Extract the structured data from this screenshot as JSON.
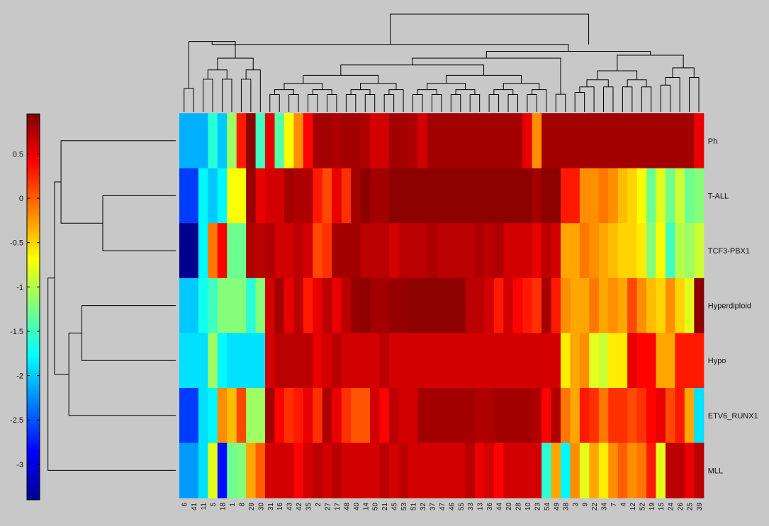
{
  "chart_data": {
    "type": "heatmap",
    "title": "",
    "rows": [
      "Ph",
      "T-ALL",
      "TCF3-PBX1",
      "Hyperdiploid",
      "Hypo",
      "ETV6_RUNX1",
      "MLL"
    ],
    "columns": [
      "6",
      "41",
      "11",
      "5",
      "18",
      "1",
      "8",
      "29",
      "30",
      "31",
      "16",
      "43",
      "42",
      "35",
      "2",
      "27",
      "17",
      "48",
      "40",
      "14",
      "50",
      "21",
      "45",
      "53",
      "51",
      "32",
      "37",
      "47",
      "46",
      "55",
      "33",
      "13",
      "36",
      "44",
      "20",
      "28",
      "10",
      "23",
      "54",
      "49",
      "38",
      "3",
      "9",
      "22",
      "34",
      "7",
      "4",
      "12",
      "52",
      "19",
      "15",
      "24",
      "26",
      "25",
      "39"
    ],
    "values": [
      [
        -2.1,
        -2.1,
        -2.1,
        -1.6,
        -2.0,
        -1.1,
        0.3,
        0.9,
        -1.5,
        0.5,
        -1.4,
        -0.7,
        -0.2,
        0.4,
        0.8,
        0.8,
        0.75,
        0.8,
        0.8,
        0.75,
        0.6,
        0.6,
        0.8,
        0.8,
        0.75,
        0.6,
        0.8,
        0.8,
        0.8,
        0.8,
        0.8,
        0.8,
        0.8,
        0.8,
        0.8,
        0.8,
        0.5,
        -0.2,
        0.8,
        0.8,
        0.8,
        0.8,
        0.8,
        0.8,
        0.8,
        0.8,
        0.8,
        0.8,
        0.8,
        0.8,
        0.8,
        0.8,
        0.8,
        0.8,
        0.5
      ],
      [
        -2.6,
        -2.6,
        -1.8,
        -2.0,
        -1.8,
        -0.7,
        -0.7,
        0.85,
        0.5,
        0.6,
        0.6,
        0.8,
        0.75,
        0.75,
        0.3,
        0.1,
        0.5,
        0.2,
        0.8,
        0.9,
        0.8,
        0.8,
        0.9,
        0.9,
        0.9,
        0.9,
        0.9,
        0.9,
        0.9,
        0.9,
        0.9,
        0.9,
        0.9,
        0.9,
        0.9,
        0.9,
        0.9,
        0.8,
        0.9,
        0.9,
        0.3,
        0.3,
        -0.2,
        -0.2,
        -0.1,
        -0.2,
        -0.4,
        -0.5,
        -0.7,
        -1.3,
        -0.8,
        -1.3,
        -0.9,
        -1.3,
        -1.2
      ],
      [
        -3.4,
        -3.4,
        -1.8,
        -0.1,
        0.4,
        -1.3,
        -1.3,
        0.75,
        0.7,
        0.75,
        0.6,
        0.6,
        0.7,
        0.6,
        0.1,
        0.2,
        0.8,
        0.8,
        0.8,
        0.7,
        0.7,
        0.7,
        0.6,
        0.7,
        0.7,
        0.7,
        0.75,
        0.7,
        0.7,
        0.7,
        0.7,
        0.75,
        0.7,
        0.75,
        0.6,
        0.6,
        0.6,
        0.5,
        0.7,
        0.6,
        -0.3,
        -0.3,
        -0.1,
        -0.2,
        -0.3,
        -0.4,
        -0.5,
        -0.5,
        -0.6,
        -1.2,
        -0.7,
        -1.5,
        -1.0,
        -1.1,
        -0.9
      ],
      [
        -2.0,
        -2.0,
        -1.7,
        -1.5,
        -1.2,
        -1.2,
        -1.2,
        -1.6,
        -1.2,
        0.6,
        0.8,
        0.5,
        0.7,
        0.3,
        0.5,
        0.7,
        0.5,
        0.7,
        0.85,
        0.9,
        0.8,
        0.8,
        0.85,
        0.85,
        0.9,
        0.9,
        0.9,
        0.9,
        0.9,
        0.9,
        0.7,
        0.7,
        0.6,
        0.3,
        0.6,
        0.4,
        0.3,
        0.2,
        0.8,
        0.3,
        -0.2,
        -0.3,
        -0.3,
        -0.1,
        -0.3,
        -0.2,
        -0.3,
        0.1,
        -0.2,
        -0.4,
        -0.5,
        -0.2,
        -0.5,
        -0.8,
        0.9
      ],
      [
        -1.9,
        -1.9,
        -1.9,
        -1.1,
        -1.8,
        -1.9,
        -1.9,
        -1.9,
        -1.9,
        0.6,
        0.7,
        0.7,
        0.7,
        0.7,
        0.5,
        0.6,
        0.7,
        0.6,
        0.6,
        0.6,
        0.6,
        0.7,
        0.6,
        0.6,
        0.6,
        0.6,
        0.6,
        0.6,
        0.6,
        0.6,
        0.6,
        0.6,
        0.6,
        0.6,
        0.6,
        0.6,
        0.6,
        0.6,
        0.6,
        0.6,
        -0.6,
        -0.3,
        -0.2,
        -0.8,
        -0.9,
        -0.6,
        -0.6,
        0.5,
        0.4,
        0.4,
        -0.3,
        -0.3,
        0.3,
        0.3,
        0.3
      ],
      [
        -2.6,
        -2.6,
        -1.9,
        -1.8,
        -0.2,
        -0.4,
        0.1,
        -1.1,
        -1.1,
        0.8,
        0.4,
        0.2,
        0.3,
        0.5,
        0.2,
        0.75,
        0.5,
        0.2,
        0.05,
        0.05,
        0.6,
        0.4,
        0.7,
        0.6,
        0.6,
        0.8,
        0.8,
        0.8,
        0.8,
        0.8,
        0.8,
        0.75,
        0.75,
        0.8,
        0.8,
        0.8,
        0.8,
        0.75,
        0.4,
        0.75,
        -0.1,
        -0.3,
        0.3,
        0.2,
        -0.1,
        0.2,
        0.2,
        0.1,
        0.2,
        0.4,
        0.5,
        0.1,
        0.3,
        -0.3,
        -1.9
      ],
      [
        -2.2,
        -2.2,
        -1.9,
        -0.8,
        -2.8,
        -1.3,
        -1.2,
        -0.3,
        0.0,
        0.6,
        0.6,
        0.6,
        0.4,
        0.6,
        0.7,
        0.6,
        0.7,
        0.6,
        0.6,
        0.6,
        0.6,
        0.7,
        0.6,
        0.7,
        0.6,
        0.6,
        0.6,
        0.6,
        0.6,
        0.6,
        0.7,
        0.5,
        0.6,
        0.4,
        0.6,
        0.6,
        0.6,
        0.6,
        -1.6,
        -0.3,
        -1.8,
        -0.2,
        -0.8,
        -0.3,
        -0.6,
        -0.2,
        0.0,
        -0.2,
        -0.1,
        0.3,
        -0.8,
        0.7,
        0.7,
        0.5,
        0.7
      ]
    ],
    "colorbar": {
      "ticks": [
        "0.5",
        "0",
        "-0.5",
        "-1",
        "-1.5",
        "-2",
        "-2.5",
        "-3"
      ],
      "tick_values": [
        0.5,
        0,
        -0.5,
        -1,
        -1.5,
        -2,
        -2.5,
        -3
      ],
      "min": -3.4,
      "max": 0.95
    },
    "colormap": [
      "#00008f",
      "#0000ff",
      "#00ffff",
      "#ffff00",
      "#ff0000",
      "#800000"
    ],
    "row_dendrogram": [
      {
        "a": "r3",
        "b": "r4",
        "height": 0.72
      },
      {
        "a": "r1",
        "b": "r2",
        "height": 0.56
      },
      {
        "a": "i0",
        "b": "r5",
        "height": 0.82
      },
      {
        "a": "r0",
        "b": "i1",
        "height": 0.88
      },
      {
        "a": "i3",
        "b": "i2",
        "height": 0.93
      },
      {
        "a": "i4",
        "b": "r6",
        "height": 0.98
      }
    ],
    "column_dendrogram": {
      "order": [
        "6",
        "41",
        "11",
        "5",
        "18",
        "1",
        "8",
        "29",
        "30",
        "31",
        "16",
        "43",
        "42",
        "35",
        "2",
        "27",
        "17",
        "48",
        "40",
        "14",
        "50",
        "21",
        "45",
        "53",
        "51",
        "32",
        "37",
        "47",
        "46",
        "55",
        "33",
        "13",
        "36",
        "44",
        "20",
        "28",
        "10",
        "23",
        "54",
        "49",
        "38",
        "3",
        "9",
        "22",
        "34",
        "7",
        "4",
        "12",
        "52",
        "19",
        "15",
        "24",
        "26",
        "25",
        "39"
      ],
      "height_scale": 1
    }
  }
}
